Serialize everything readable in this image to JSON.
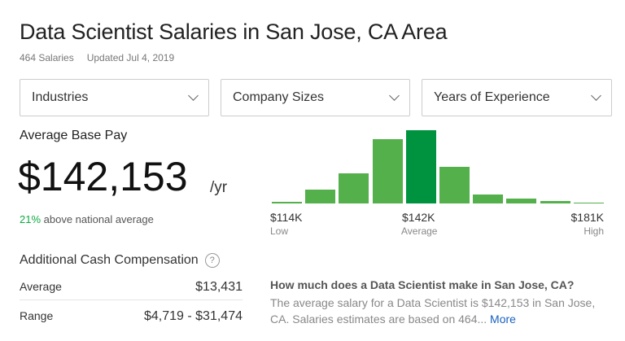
{
  "title": "Data Scientist Salaries in San Jose, CA Area",
  "meta": {
    "count": "464 Salaries",
    "updated": "Updated Jul 4, 2019"
  },
  "filters": [
    {
      "label": "Industries"
    },
    {
      "label": "Company Sizes"
    },
    {
      "label": "Years of Experience"
    }
  ],
  "base_pay": {
    "label": "Average Base Pay",
    "value": "$142,153",
    "unit": "/yr",
    "pct": "21%",
    "pct_text": " above national average"
  },
  "chart_data": {
    "type": "bar",
    "values": [
      2,
      17,
      37,
      79,
      90,
      45,
      11,
      6,
      3,
      1
    ],
    "highlight_index": 4,
    "colors": {
      "bar": "#53b04b",
      "highlight": "#00933f"
    },
    "labels": {
      "low": {
        "value": "$114K",
        "caption": "Low"
      },
      "avg": {
        "value": "$142K",
        "caption": "Average"
      },
      "high": {
        "value": "$181K",
        "caption": "High"
      }
    }
  },
  "cash": {
    "title": "Additional Cash Compensation",
    "help": "?",
    "rows": [
      {
        "label": "Average",
        "value": "$13,431"
      },
      {
        "label": "Range",
        "value": "$4,719 - $31,474"
      }
    ]
  },
  "faq": {
    "question": "How much does a Data Scientist make in San Jose, CA?",
    "answer": "The average salary for a Data Scientist is $142,153 in San Jose, CA. Salaries estimates are based on 464...",
    "more": "More"
  }
}
